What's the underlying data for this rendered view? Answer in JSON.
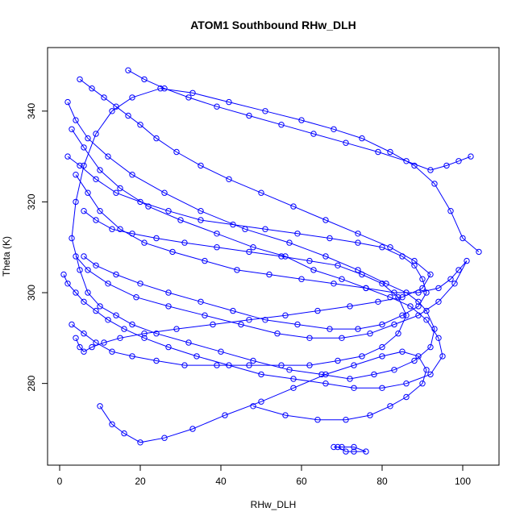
{
  "chart_data": {
    "type": "line",
    "title": "ATOM1 Southbound RHw_DLH",
    "xlabel": "RHw_DLH",
    "ylabel": "Theta (K)",
    "xlim": [
      -3,
      109
    ],
    "ylim": [
      262,
      354
    ],
    "xticks": [
      0,
      20,
      40,
      60,
      80,
      100
    ],
    "yticks": [
      280,
      300,
      320,
      340
    ],
    "grid": false,
    "series_color": "#0000ff",
    "marker": "open-circle",
    "series": [
      {
        "x": [
          2,
          4,
          7,
          12,
          18,
          26,
          35,
          46,
          57,
          66,
          74,
          81,
          86,
          89,
          91,
          93,
          92,
          88,
          83,
          78,
          72,
          65,
          57,
          48,
          40,
          32,
          24,
          18,
          14,
          10,
          7,
          5,
          3,
          4,
          6,
          9,
          13,
          18,
          25,
          33,
          42,
          51,
          60,
          68,
          75,
          82,
          88,
          93,
          97,
          100,
          104
        ],
        "y": [
          342,
          338,
          334,
          330,
          326,
          322,
          318,
          314,
          311,
          308,
          305,
          302,
          300,
          298,
          296,
          292,
          288,
          285,
          283,
          282,
          281,
          282,
          283,
          285,
          287,
          289,
          291,
          293,
          295,
          297,
          300,
          305,
          312,
          320,
          328,
          335,
          340,
          343,
          345,
          344,
          342,
          340,
          338,
          336,
          334,
          331,
          328,
          324,
          318,
          312,
          309
        ]
      },
      {
        "x": [
          3,
          6,
          10,
          15,
          22,
          30,
          39,
          48,
          56,
          63,
          70,
          76,
          82,
          87,
          91,
          94,
          95,
          92,
          86,
          80,
          73,
          66,
          58,
          50,
          42,
          34,
          27,
          21,
          16,
          12,
          9,
          6,
          4,
          2,
          1
        ],
        "y": [
          336,
          332,
          327,
          323,
          319,
          316,
          313,
          310,
          308,
          305,
          303,
          301,
          299,
          297,
          294,
          290,
          286,
          282,
          280,
          279,
          279,
          280,
          281,
          282,
          284,
          286,
          288,
          290,
          292,
          294,
          296,
          298,
          300,
          302,
          304
        ]
      },
      {
        "x": [
          5,
          8,
          11,
          14,
          17,
          20,
          24,
          29,
          35,
          42,
          50,
          58,
          66,
          74,
          82,
          88,
          92,
          90,
          85,
          79,
          72,
          64,
          56,
          47,
          38,
          29,
          21,
          15,
          11,
          8,
          6,
          5,
          4
        ],
        "y": [
          347,
          345,
          343,
          341,
          339,
          337,
          334,
          331,
          328,
          325,
          322,
          319,
          316,
          313,
          310,
          307,
          304,
          301,
          299,
          298,
          297,
          296,
          295,
          294,
          293,
          292,
          291,
          290,
          289,
          288,
          287,
          288,
          290
        ]
      },
      {
        "x": [
          10,
          13,
          16,
          20,
          26,
          33,
          41,
          50,
          58,
          66,
          73,
          80,
          85,
          89,
          91,
          90,
          86,
          82,
          77,
          71,
          64,
          56,
          48
        ],
        "y": [
          275,
          271,
          269,
          267,
          268,
          270,
          273,
          276,
          279,
          282,
          284,
          286,
          287,
          286,
          283,
          280,
          277,
          275,
          273,
          272,
          272,
          273,
          275
        ]
      },
      {
        "x": [
          69,
          71,
          73,
          76,
          73,
          70,
          68
        ],
        "y": [
          266,
          265,
          265,
          265,
          266,
          266,
          266
        ]
      },
      {
        "x": [
          4,
          7,
          10,
          15,
          21,
          28,
          36,
          44,
          52,
          60,
          68,
          76,
          83,
          89,
          94,
          97,
          99,
          101,
          98,
          94,
          89,
          83,
          77,
          70,
          62,
          54,
          45,
          36,
          27,
          19,
          12,
          7,
          4
        ],
        "y": [
          326,
          322,
          318,
          314,
          311,
          309,
          307,
          305,
          304,
          303,
          302,
          301,
          300,
          300,
          301,
          303,
          305,
          307,
          302,
          298,
          295,
          293,
          291,
          290,
          290,
          291,
          293,
          295,
          297,
          299,
          302,
          305,
          308
        ]
      },
      {
        "x": [
          2,
          5,
          9,
          14,
          20,
          27,
          35,
          43,
          51,
          59,
          67,
          74,
          80,
          85,
          88,
          90,
          91,
          89,
          85,
          80,
          74,
          67,
          59,
          51,
          43,
          35,
          27,
          20,
          14,
          9,
          6
        ],
        "y": [
          330,
          328,
          325,
          322,
          320,
          318,
          316,
          315,
          314,
          313,
          312,
          311,
          310,
          308,
          306,
          303,
          300,
          297,
          295,
          293,
          292,
          292,
          293,
          294,
          296,
          298,
          300,
          302,
          304,
          306,
          308
        ]
      },
      {
        "x": [
          17,
          21,
          26,
          32,
          39,
          47,
          55,
          63,
          71,
          79,
          86,
          92,
          96,
          99,
          102
        ],
        "y": [
          349,
          347,
          345,
          343,
          341,
          339,
          337,
          335,
          333,
          331,
          329,
          327,
          328,
          329,
          330
        ]
      },
      {
        "x": [
          3,
          6,
          9,
          13,
          18,
          24,
          31,
          39,
          47,
          55,
          62,
          69,
          75,
          80,
          84,
          86,
          84,
          80,
          75,
          69,
          62,
          55,
          47,
          39,
          31,
          24,
          18,
          13,
          9,
          6
        ],
        "y": [
          293,
          291,
          289,
          287,
          286,
          285,
          284,
          284,
          284,
          284,
          284,
          285,
          286,
          288,
          291,
          295,
          299,
          302,
          304,
          306,
          307,
          308,
          309,
          310,
          311,
          312,
          313,
          314,
          316,
          318
        ]
      }
    ]
  }
}
